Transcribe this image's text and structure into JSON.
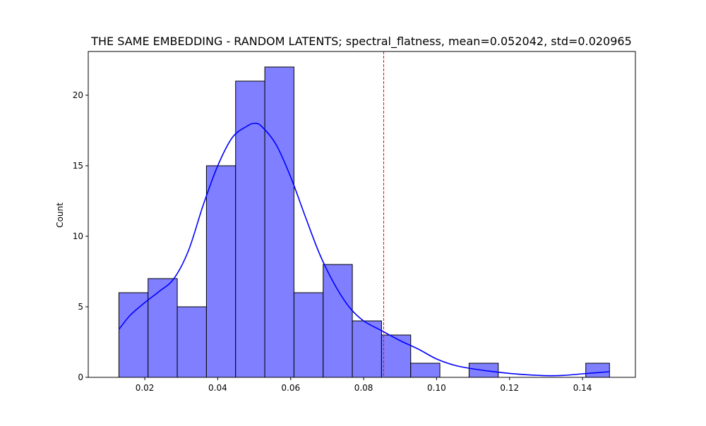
{
  "chart_data": {
    "type": "bar",
    "title": "THE SAME EMBEDDING - RANDOM LATENTS; spectral_flatness, mean=0.052042, std=0.020965",
    "xlabel": "",
    "ylabel": "Count",
    "xlim": [
      0.0045,
      0.1545
    ],
    "ylim": [
      0,
      23.1
    ],
    "bin_edges": [
      0.0129,
      0.0209,
      0.0289,
      0.0369,
      0.0449,
      0.0529,
      0.0609,
      0.0689,
      0.0769,
      0.0849,
      0.0929,
      0.1009,
      0.1089,
      0.1169,
      0.1249,
      0.1329,
      0.1409,
      0.1474
    ],
    "counts": [
      6,
      7,
      5,
      15,
      21,
      22,
      6,
      8,
      4,
      3,
      1,
      0,
      1,
      0,
      0,
      0,
      1
    ],
    "x_ticks": [
      {
        "value": 0.02,
        "label": "0.02"
      },
      {
        "value": 0.04,
        "label": "0.04"
      },
      {
        "value": 0.06,
        "label": "0.06"
      },
      {
        "value": 0.08,
        "label": "0.08"
      },
      {
        "value": 0.1,
        "label": "0.10"
      },
      {
        "value": 0.12,
        "label": "0.12"
      },
      {
        "value": 0.14,
        "label": "0.14"
      }
    ],
    "y_ticks": [
      {
        "value": 0,
        "label": "0"
      },
      {
        "value": 5,
        "label": "5"
      },
      {
        "value": 10,
        "label": "10"
      },
      {
        "value": 15,
        "label": "15"
      },
      {
        "value": 20,
        "label": "20"
      }
    ],
    "kde": {
      "x": [
        0.0129,
        0.016,
        0.02,
        0.024,
        0.028,
        0.032,
        0.036,
        0.04,
        0.044,
        0.048,
        0.05,
        0.052,
        0.056,
        0.06,
        0.064,
        0.068,
        0.072,
        0.076,
        0.08,
        0.085,
        0.09,
        0.095,
        0.1,
        0.105,
        0.11,
        0.115,
        0.12,
        0.125,
        0.13,
        0.135,
        0.14,
        0.1474
      ],
      "y": [
        3.4,
        4.4,
        5.3,
        6.1,
        7.0,
        9.0,
        12.2,
        15.0,
        17.0,
        17.8,
        18.0,
        17.8,
        16.5,
        14.2,
        11.4,
        8.7,
        6.6,
        5.0,
        4.0,
        3.3,
        2.6,
        2.0,
        1.3,
        0.85,
        0.6,
        0.42,
        0.28,
        0.18,
        0.12,
        0.14,
        0.25,
        0.4
      ]
    },
    "reference_line": {
      "x": 0.0855,
      "style": "dashed"
    },
    "colors": {
      "bar_fill": "#7f7fff",
      "bar_edge": "#000000",
      "kde_line": "#0000ff",
      "reference_line": "#ff0000"
    },
    "grid": false,
    "legend": "none"
  }
}
